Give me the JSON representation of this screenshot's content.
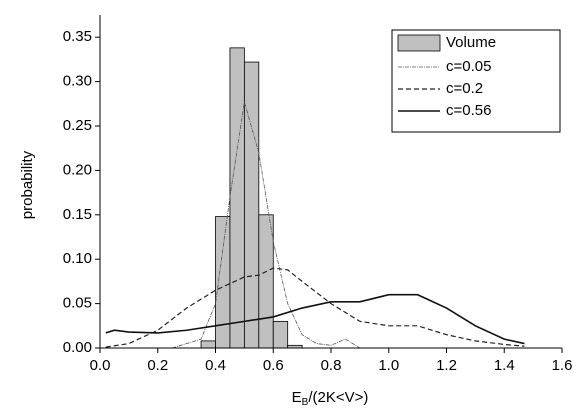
{
  "chart_data": {
    "type": "histogram",
    "xlabel": [
      "E",
      "B",
      "/(2K<V>)"
    ],
    "ylabel": "probability",
    "xlim": [
      0,
      1.6
    ],
    "ylim": [
      0,
      0.375
    ],
    "xticks": [
      {
        "value": 0,
        "label": "0.0"
      },
      {
        "value": 0.2,
        "label": "0.2"
      },
      {
        "value": 0.4,
        "label": "0.4"
      },
      {
        "value": 0.6,
        "label": "0.6"
      },
      {
        "value": 0.8,
        "label": "0.8"
      },
      {
        "value": 1,
        "label": "1.0"
      },
      {
        "value": 1.2,
        "label": "1.2"
      },
      {
        "value": 1.4,
        "label": "1.4"
      },
      {
        "value": 1.6,
        "label": "1.6"
      }
    ],
    "yticks": [
      {
        "value": 0,
        "label": "0.00"
      },
      {
        "value": 0.05,
        "label": "0.05"
      },
      {
        "value": 0.1,
        "label": "0.10"
      },
      {
        "value": 0.15,
        "label": "0.15"
      },
      {
        "value": 0.2,
        "label": "0.20"
      },
      {
        "value": 0.25,
        "label": "0.25"
      },
      {
        "value": 0.3,
        "label": "0.30"
      },
      {
        "value": 0.35,
        "label": "0.35"
      }
    ],
    "histogram": {
      "name": "Volume",
      "color": "#c0c0c0",
      "bins": [
        0.35,
        0.4,
        0.45,
        0.5,
        0.55,
        0.6,
        0.65,
        0.7
      ],
      "counts": [
        0.008,
        0.148,
        0.338,
        0.322,
        0.15,
        0.03,
        0.003
      ]
    },
    "series": [
      {
        "name": "c=0.05",
        "color": "#555555",
        "dash": "4 1 1 1",
        "width": 0.8,
        "x": [
          0.25,
          0.3,
          0.35,
          0.4,
          0.45,
          0.5,
          0.55,
          0.6,
          0.65,
          0.7,
          0.75,
          0.8,
          0.85,
          0.9
        ],
        "values": [
          0,
          0.005,
          0.01,
          0.05,
          0.17,
          0.277,
          0.22,
          0.12,
          0.05,
          0.015,
          0.005,
          0.003,
          0.01,
          0
        ]
      },
      {
        "name": "c=0.2",
        "color": "#222222",
        "dash": "5 3",
        "width": 1.2,
        "x": [
          0.02,
          0.1,
          0.2,
          0.3,
          0.4,
          0.5,
          0.55,
          0.6,
          0.65,
          0.7,
          0.8,
          0.9,
          1.0,
          1.1,
          1.2,
          1.3,
          1.4,
          1.47
        ],
        "values": [
          0.001,
          0.005,
          0.02,
          0.045,
          0.065,
          0.08,
          0.082,
          0.09,
          0.088,
          0.075,
          0.05,
          0.03,
          0.025,
          0.025,
          0.015,
          0.008,
          0.004,
          0.002
        ]
      },
      {
        "name": "c=0.56",
        "color": "#111111",
        "dash": "none",
        "width": 1.6,
        "x": [
          0.02,
          0.05,
          0.1,
          0.2,
          0.3,
          0.4,
          0.5,
          0.6,
          0.7,
          0.8,
          0.9,
          1.0,
          1.1,
          1.2,
          1.3,
          1.4,
          1.47
        ],
        "values": [
          0.017,
          0.02,
          0.018,
          0.017,
          0.02,
          0.025,
          0.03,
          0.035,
          0.045,
          0.052,
          0.052,
          0.06,
          0.06,
          0.045,
          0.025,
          0.01,
          0.005
        ]
      }
    ]
  }
}
